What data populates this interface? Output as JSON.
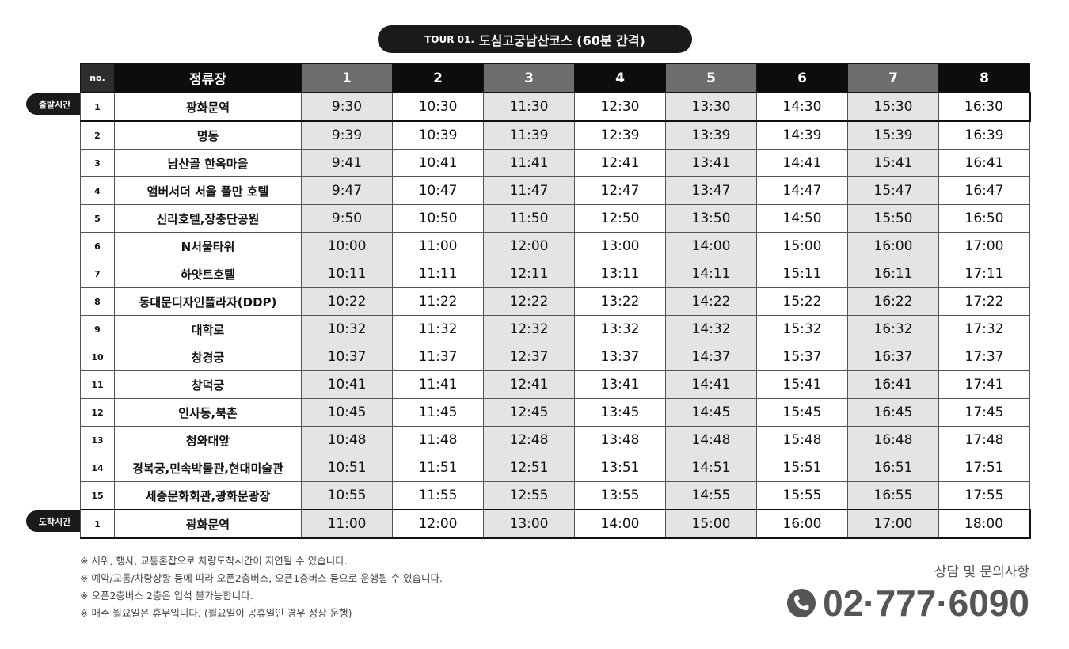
{
  "title": {
    "code": "TOUR 01.",
    "name": "도심고궁남산코스 (60분 간격)"
  },
  "labels": {
    "departure": "출발시간",
    "arrival": "도착시간"
  },
  "table": {
    "headers": {
      "no": "no.",
      "stop": "정류장",
      "trips": [
        "1",
        "2",
        "3",
        "4",
        "5",
        "6",
        "7",
        "8"
      ]
    },
    "rows": [
      {
        "no": "1",
        "stop": "광화문역",
        "times": [
          "9:30",
          "10:30",
          "11:30",
          "12:30",
          "13:30",
          "14:30",
          "15:30",
          "16:30"
        ]
      },
      {
        "no": "2",
        "stop": "명동",
        "times": [
          "9:39",
          "10:39",
          "11:39",
          "12:39",
          "13:39",
          "14:39",
          "15:39",
          "16:39"
        ]
      },
      {
        "no": "3",
        "stop": "남산골 한옥마을",
        "times": [
          "9:41",
          "10:41",
          "11:41",
          "12:41",
          "13:41",
          "14:41",
          "15:41",
          "16:41"
        ]
      },
      {
        "no": "4",
        "stop": "앰버서더 서울 풀만 호텔",
        "times": [
          "9:47",
          "10:47",
          "11:47",
          "12:47",
          "13:47",
          "14:47",
          "15:47",
          "16:47"
        ]
      },
      {
        "no": "5",
        "stop": "신라호텔,장충단공원",
        "times": [
          "9:50",
          "10:50",
          "11:50",
          "12:50",
          "13:50",
          "14:50",
          "15:50",
          "16:50"
        ]
      },
      {
        "no": "6",
        "stop": "N서울타워",
        "times": [
          "10:00",
          "11:00",
          "12:00",
          "13:00",
          "14:00",
          "15:00",
          "16:00",
          "17:00"
        ]
      },
      {
        "no": "7",
        "stop": "하얏트호텔",
        "times": [
          "10:11",
          "11:11",
          "12:11",
          "13:11",
          "14:11",
          "15:11",
          "16:11",
          "17:11"
        ]
      },
      {
        "no": "8",
        "stop": "동대문디자인플라자(DDP)",
        "times": [
          "10:22",
          "11:22",
          "12:22",
          "13:22",
          "14:22",
          "15:22",
          "16:22",
          "17:22"
        ]
      },
      {
        "no": "9",
        "stop": "대학로",
        "times": [
          "10:32",
          "11:32",
          "12:32",
          "13:32",
          "14:32",
          "15:32",
          "16:32",
          "17:32"
        ]
      },
      {
        "no": "10",
        "stop": "창경궁",
        "times": [
          "10:37",
          "11:37",
          "12:37",
          "13:37",
          "14:37",
          "15:37",
          "16:37",
          "17:37"
        ]
      },
      {
        "no": "11",
        "stop": "창덕궁",
        "times": [
          "10:41",
          "11:41",
          "12:41",
          "13:41",
          "14:41",
          "15:41",
          "16:41",
          "17:41"
        ]
      },
      {
        "no": "12",
        "stop": "인사동,북촌",
        "times": [
          "10:45",
          "11:45",
          "12:45",
          "13:45",
          "14:45",
          "15:45",
          "16:45",
          "17:45"
        ]
      },
      {
        "no": "13",
        "stop": "청와대앞",
        "times": [
          "10:48",
          "11:48",
          "12:48",
          "13:48",
          "14:48",
          "15:48",
          "16:48",
          "17:48"
        ]
      },
      {
        "no": "14",
        "stop": "경복궁,민속박물관,현대미술관",
        "times": [
          "10:51",
          "11:51",
          "12:51",
          "13:51",
          "14:51",
          "15:51",
          "16:51",
          "17:51"
        ]
      },
      {
        "no": "15",
        "stop": "세종문화회관,광화문광장",
        "times": [
          "10:55",
          "11:55",
          "12:55",
          "13:55",
          "14:55",
          "15:55",
          "16:55",
          "17:55"
        ]
      },
      {
        "no": "1",
        "stop": "광화문역",
        "times": [
          "11:00",
          "12:00",
          "13:00",
          "14:00",
          "15:00",
          "16:00",
          "17:00",
          "18:00"
        ]
      }
    ]
  },
  "notes": [
    "※ 시위, 행사, 교통혼잡으로 차량도착시간이 지연될 수 있습니다.",
    "※ 예약/교통/차량상황 등에 따라 오픈2층버스, 오픈1층버스 등으로 운행될 수 있습니다.",
    "※ 오픈2층버스 2층은 입석 불가능합니다.",
    "※ 매주 월요일은 휴무입니다. (월요일이 공휴일인 경우 정상 운행)"
  ],
  "contact": {
    "label": "상담 및 문의사항",
    "phone": "02·777·6090",
    "icon": "phone-icon"
  },
  "colors": {
    "dark": "#1a1a1a",
    "header_odd": "#6e6e6e",
    "cell_odd": "#e4e4e4",
    "phone": "#555555"
  }
}
